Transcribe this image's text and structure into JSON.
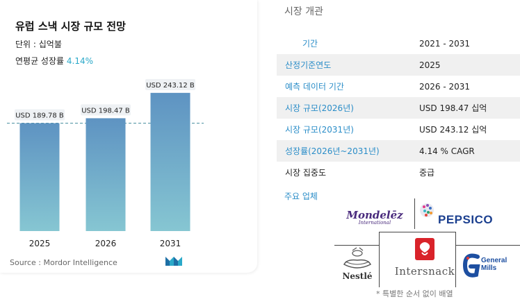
{
  "chart_card": {
    "title": "유럽 스낵 시장 규모 전망",
    "unit_line": "단위 : 십억불",
    "cagr_label": "연평균 성장률",
    "cagr_value": "4.14%",
    "source": "Source : Mordor Intelligence",
    "logo_icon": "mordor-intelligence-logo-icon"
  },
  "chart_data": {
    "type": "bar",
    "categories": [
      "2025",
      "2026",
      "2031"
    ],
    "values": [
      189.78,
      198.47,
      243.12
    ],
    "data_labels": [
      "USD 189.78 B",
      "USD 198.47 B",
      "USD 243.12 B"
    ],
    "reference_line_value": 189.78,
    "title": "유럽 스낵 시장 규모 전망",
    "xlabel": "",
    "ylabel": "",
    "ylim": [
      0,
      260
    ],
    "colors": {
      "bar_top": "#5e93c2",
      "bar_bottom": "#86c6d2",
      "reference_line": "#4a8fa0",
      "label_bg": "#eef1f4"
    }
  },
  "overview": {
    "title": "시장 개관",
    "rows": [
      {
        "label": "기간",
        "value": "2021 - 2031"
      },
      {
        "label": "산정기준연도",
        "value": "2025"
      },
      {
        "label": "예측 데이터 기간",
        "value": "2026 - 2031"
      },
      {
        "label": "시장 규모(2026년)",
        "value": "USD 198.47 십억"
      },
      {
        "label": "시장 규모(2031년)",
        "value": "USD 243.12 십억"
      },
      {
        "label": "성장률(2026년~2031년)",
        "value": "4.14 % CAGR"
      },
      {
        "label": "시장 집중도",
        "value": "중급"
      }
    ]
  },
  "players": {
    "title": "주요 업체",
    "logos": {
      "mondelez": {
        "main": "Mondelēz",
        "sub": "International"
      },
      "pepsico": "PEPSICO",
      "nestle": "Nestlé",
      "intersnack": "Intersnack",
      "general_mills": {
        "line1": "General",
        "line2": "Mills"
      }
    },
    "footnote": "* 특별한 순서 없이 배열"
  }
}
